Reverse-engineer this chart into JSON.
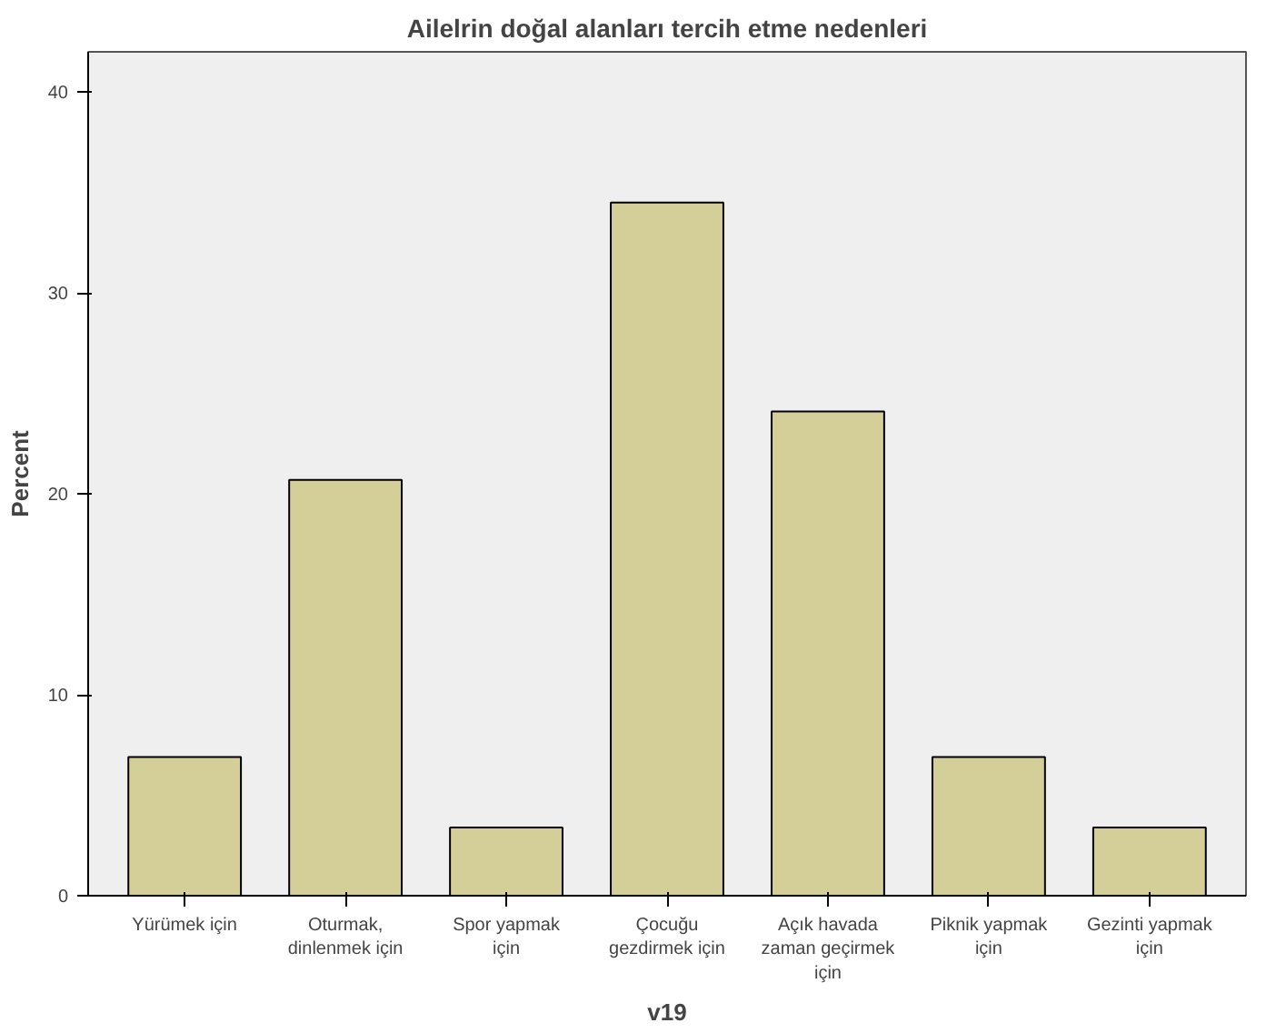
{
  "chart_data": {
    "type": "bar",
    "title": "Ailelrin doğal alanları tercih etme nedenleri",
    "xlabel": "v19",
    "ylabel": "Percent",
    "categories": [
      "Yürümek için",
      "Oturmak, dinlenmek için",
      "Spor yapmak için",
      "Çocuğu gezdirmek için",
      "Açık havada zaman geçirmek için",
      "Piknik yapmak için",
      "Gezinti yapmak için"
    ],
    "values": [
      6.9,
      20.7,
      3.4,
      34.5,
      24.1,
      6.9,
      3.4
    ],
    "color": "#d4cf98",
    "ylim": [
      0,
      42
    ],
    "yticks": [
      0,
      10,
      20,
      30,
      40
    ],
    "grid": false
  }
}
